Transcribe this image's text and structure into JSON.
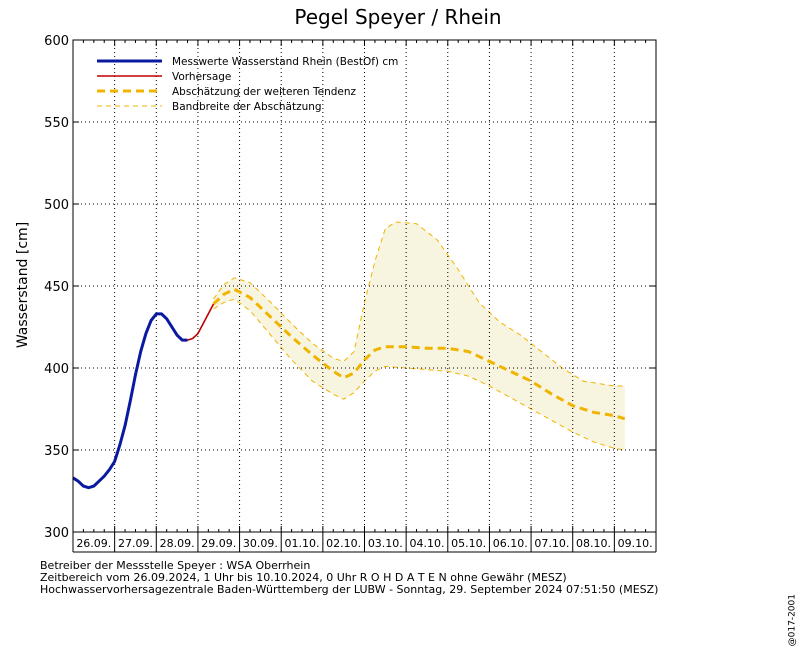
{
  "chart_data": {
    "type": "line",
    "title": "Pegel Speyer / Rhein",
    "ylabel": "Wasserstand [cm]",
    "ylim": [
      300,
      600
    ],
    "yticks": [
      300,
      350,
      400,
      450,
      500,
      550,
      600
    ],
    "x_start": "26.09.2024 00:00",
    "x_end": "10.10.2024 00:00",
    "x_tick_labels": [
      "26.09.",
      "27.09.",
      "28.09.",
      "29.09.",
      "30.09.",
      "01.10.",
      "02.10.",
      "03.10.",
      "04.10.",
      "05.10.",
      "06.10.",
      "07.10.",
      "08.10.",
      "09.10."
    ],
    "grid": true,
    "legend_position": "top-left",
    "series": [
      {
        "name": "Messwerte Wasserstand Rhein (BestOf)  cm",
        "color": "#0a1aa0",
        "style": "solid",
        "points": [
          [
            "26.09. 00:00",
            333
          ],
          [
            "26.09. 03:00",
            331
          ],
          [
            "26.09. 06:00",
            328
          ],
          [
            "26.09. 09:00",
            327
          ],
          [
            "26.09. 12:00",
            328
          ],
          [
            "26.09. 15:00",
            331
          ],
          [
            "26.09. 18:00",
            334
          ],
          [
            "26.09. 21:00",
            338
          ],
          [
            "27.09. 00:00",
            343
          ],
          [
            "27.09. 03:00",
            353
          ],
          [
            "27.09. 06:00",
            365
          ],
          [
            "27.09. 09:00",
            380
          ],
          [
            "27.09. 12:00",
            396
          ],
          [
            "27.09. 15:00",
            410
          ],
          [
            "27.09. 18:00",
            421
          ],
          [
            "27.09. 21:00",
            429
          ],
          [
            "28.09. 00:00",
            433
          ],
          [
            "28.09. 03:00",
            433
          ],
          [
            "28.09. 06:00",
            430
          ],
          [
            "28.09. 09:00",
            425
          ],
          [
            "28.09. 12:00",
            420
          ],
          [
            "28.09. 15:00",
            417
          ],
          [
            "28.09. 18:00",
            417
          ]
        ]
      },
      {
        "name": "Vorhersage",
        "color": "#c00000",
        "style": "solid",
        "points": [
          [
            "28.09. 18:00",
            417
          ],
          [
            "28.09. 21:00",
            418
          ],
          [
            "29.09. 00:00",
            421
          ],
          [
            "29.09. 03:00",
            427
          ],
          [
            "29.09. 06:00",
            433
          ],
          [
            "29.09. 09:00",
            439
          ]
        ]
      },
      {
        "name": "Abschätzung der weiteren Tendenz",
        "color": "#f0b400",
        "style": "dashed-thick",
        "points": [
          [
            "29.09. 09:00",
            439
          ],
          [
            "29.09. 15:00",
            445
          ],
          [
            "29.09. 21:00",
            448
          ],
          [
            "30.09. 06:00",
            443
          ],
          [
            "30.09. 18:00",
            431
          ],
          [
            "01.10. 06:00",
            419
          ],
          [
            "01.10. 18:00",
            408
          ],
          [
            "02.10. 06:00",
            398
          ],
          [
            "02.10. 12:00",
            394
          ],
          [
            "02.10. 18:00",
            397
          ],
          [
            "03.10. 00:00",
            405
          ],
          [
            "03.10. 06:00",
            411
          ],
          [
            "03.10. 12:00",
            413
          ],
          [
            "04.10. 00:00",
            413
          ],
          [
            "04.10. 12:00",
            412
          ],
          [
            "05.10. 00:00",
            412
          ],
          [
            "05.10. 12:00",
            410
          ],
          [
            "06.10. 00:00",
            404
          ],
          [
            "06.10. 12:00",
            398
          ],
          [
            "07.10. 00:00",
            392
          ],
          [
            "07.10. 12:00",
            384
          ],
          [
            "08.10. 00:00",
            377
          ],
          [
            "08.10. 12:00",
            373
          ],
          [
            "09.10. 00:00",
            371
          ],
          [
            "09.10. 06:00",
            369
          ]
        ]
      }
    ],
    "band": {
      "name": "Bandbreite der Abschätzung",
      "color": "#f0b400",
      "fill": "#f7f5df",
      "upper": [
        [
          "29.09. 09:00",
          442
        ],
        [
          "29.09. 15:00",
          451
        ],
        [
          "29.09. 21:00",
          455
        ],
        [
          "30.09. 06:00",
          452
        ],
        [
          "30.09. 18:00",
          440
        ],
        [
          "01.10. 06:00",
          427
        ],
        [
          "01.10. 18:00",
          415
        ],
        [
          "02.10. 06:00",
          406
        ],
        [
          "02.10. 12:00",
          404
        ],
        [
          "02.10. 18:00",
          410
        ],
        [
          "03.10. 00:00",
          440
        ],
        [
          "03.10. 06:00",
          465
        ],
        [
          "03.10. 12:00",
          485
        ],
        [
          "03.10. 18:00",
          489
        ],
        [
          "04.10. 06:00",
          488
        ],
        [
          "04.10. 18:00",
          478
        ],
        [
          "05.10. 06:00",
          460
        ],
        [
          "05.10. 18:00",
          440
        ],
        [
          "06.10. 06:00",
          428
        ],
        [
          "06.10. 18:00",
          420
        ],
        [
          "07.10. 06:00",
          410
        ],
        [
          "07.10. 18:00",
          400
        ],
        [
          "08.10. 06:00",
          392
        ],
        [
          "09.10. 00:00",
          389
        ],
        [
          "09.10. 06:00",
          389
        ]
      ],
      "lower": [
        [
          "29.09. 09:00",
          436
        ],
        [
          "29.09. 15:00",
          440
        ],
        [
          "29.09. 21:00",
          442
        ],
        [
          "30.09. 06:00",
          435
        ],
        [
          "30.09. 18:00",
          420
        ],
        [
          "01.10. 06:00",
          405
        ],
        [
          "01.10. 18:00",
          392
        ],
        [
          "02.10. 06:00",
          384
        ],
        [
          "02.10. 12:00",
          381
        ],
        [
          "02.10. 18:00",
          385
        ],
        [
          "03.10. 00:00",
          392
        ],
        [
          "03.10. 06:00",
          398
        ],
        [
          "03.10. 12:00",
          401
        ],
        [
          "04.10. 00:00",
          400
        ],
        [
          "04.10. 12:00",
          399
        ],
        [
          "05.10. 00:00",
          398
        ],
        [
          "05.10. 12:00",
          395
        ],
        [
          "06.10. 00:00",
          389
        ],
        [
          "06.10. 12:00",
          382
        ],
        [
          "07.10. 00:00",
          375
        ],
        [
          "07.10. 12:00",
          368
        ],
        [
          "08.10. 00:00",
          361
        ],
        [
          "08.10. 12:00",
          355
        ],
        [
          "09.10. 00:00",
          351
        ],
        [
          "09.10. 06:00",
          350
        ]
      ]
    },
    "legend": [
      {
        "label": "Messwerte Wasserstand Rhein (BestOf)  cm",
        "style": "solid-thick",
        "color": "#0a1aa0"
      },
      {
        "label": "Vorhersage",
        "style": "solid",
        "color": "#c00000"
      },
      {
        "label": "Abschätzung der weiteren Tendenz",
        "style": "dashed-thick",
        "color": "#f0b400"
      },
      {
        "label": "Bandbreite der Abschätzung",
        "style": "dashed-thin",
        "color": "#f0b400"
      }
    ]
  },
  "footer": {
    "line1": "Betreiber der Messstelle Speyer : WSA Oberrhein",
    "line2": "Zeitbereich vom 26.09.2024, 1 Uhr bis 10.10.2024, 0 Uhr    R O H D A T E N ohne Gewähr (MESZ)",
    "line3": "Hochwasservorhersagezentrale Baden-Württemberg der LUBW - Sonntag, 29. September 2024 07:51:50 (MESZ)"
  },
  "side_code": "@017-2001"
}
